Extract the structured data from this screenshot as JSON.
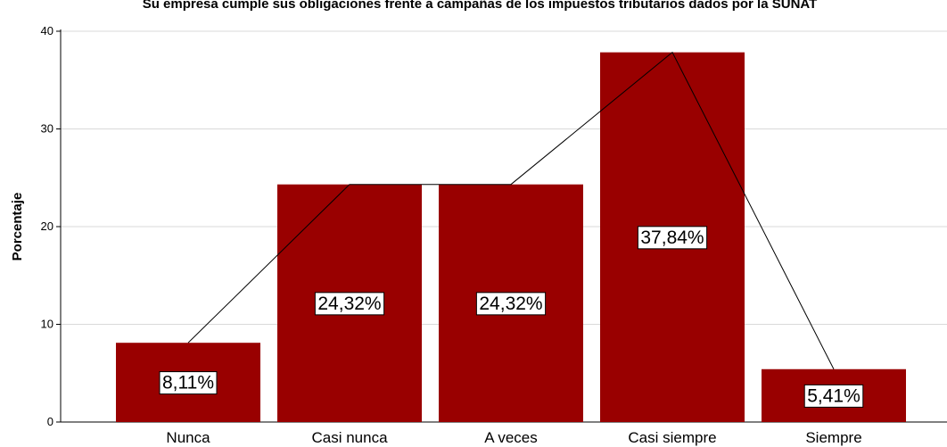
{
  "chart_data": {
    "type": "bar",
    "title": "Su empresa cumple sus obligaciones frente a campañas de los impuestos tributarios dados por la SUNAT",
    "xlabel": "",
    "ylabel": "Porcentaje",
    "categories": [
      "Nunca",
      "Casi nunca",
      "A veces",
      "Casi siempre",
      "Siempre"
    ],
    "values": [
      8.11,
      24.32,
      24.32,
      37.84,
      5.41
    ],
    "data_labels": [
      "8,11%",
      "24,32%",
      "24,32%",
      "37,84%",
      "5,41%"
    ],
    "yticks": [
      "0",
      "10",
      "20",
      "30",
      "40"
    ],
    "ylim": [
      0,
      40
    ],
    "grid": true,
    "overlay_line": true,
    "bar_color": "#990000",
    "line_color": "#000000",
    "grid_color": "#d9d9d9"
  }
}
